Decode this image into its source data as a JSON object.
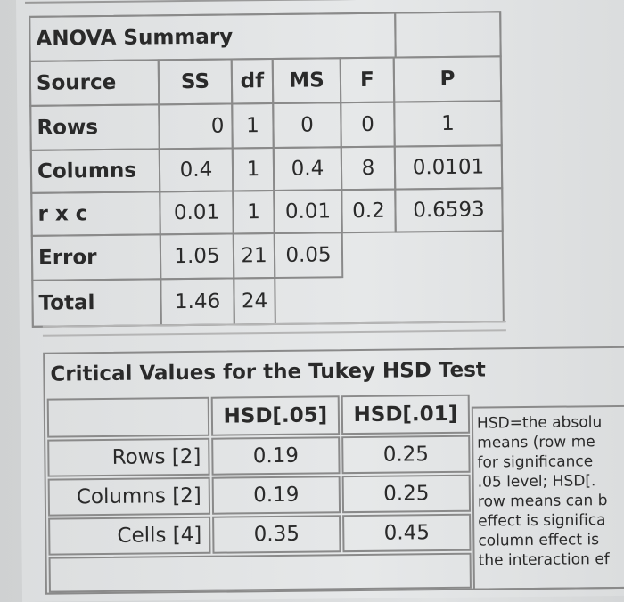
{
  "anova": {
    "title": "ANOVA Summary",
    "headers": [
      "Source",
      "SS",
      "df",
      "MS",
      "F",
      "P"
    ],
    "rows": [
      [
        "Rows",
        "0",
        "1",
        "0",
        "0",
        "1"
      ],
      [
        "Columns",
        "0.4",
        "1",
        "0.4",
        "8",
        "0.0101"
      ],
      [
        "r x c",
        "0.01",
        "1",
        "0.01",
        "0.2",
        "0.6593"
      ],
      [
        "Error",
        "1.05",
        "21",
        "0.05"
      ],
      [
        "Total",
        "1.46",
        "24"
      ]
    ]
  },
  "tukey": {
    "title": "Critical Values for the Tukey HSD Test",
    "headers": [
      "HSD[.05]",
      "HSD[.01]"
    ],
    "rows": [
      [
        "Rows [2]",
        "0.19",
        "0.25"
      ],
      [
        "Columns [2]",
        "0.19",
        "0.25"
      ],
      [
        "Cells [4]",
        "0.35",
        "0.45"
      ]
    ]
  },
  "note_lines": [
    "HSD=the absolu",
    "means (row me",
    "for significance",
    ".05 level; HSD[.",
    "row means can b",
    "effect is significa",
    "column effect is",
    "the interaction ef"
  ]
}
